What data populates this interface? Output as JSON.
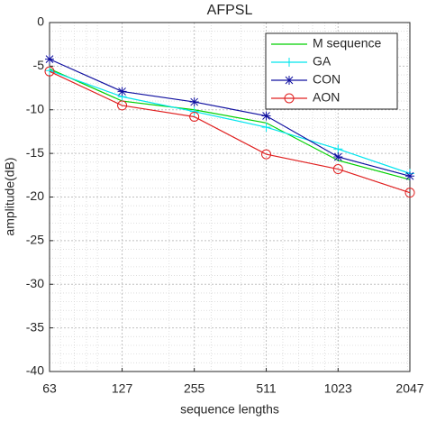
{
  "chart_data": {
    "type": "line",
    "title": "AFPSL",
    "x_label": "sequence lengths",
    "y_label": "amplitude(dB)",
    "x": [
      63,
      127,
      255,
      511,
      1023,
      2047
    ],
    "xscale": "log",
    "xlim": [
      63,
      2047
    ],
    "xticks": [
      63,
      127,
      255,
      511,
      1023,
      2047
    ],
    "ylim": [
      -40,
      0
    ],
    "yticks": [
      -40,
      -35,
      -30,
      -25,
      -20,
      -15,
      -10,
      -5,
      0
    ],
    "grid": true,
    "minor_grid": true,
    "legend": "top-right",
    "series": [
      {
        "name": "M sequence",
        "color": "#00d000",
        "marker": "none",
        "values": [
          -5.3,
          -9.0,
          -10.0,
          -11.5,
          -15.8,
          -18.0
        ]
      },
      {
        "name": "GA",
        "color": "#00e5ee",
        "marker": "plus",
        "values": [
          -5.5,
          -8.5,
          -10.2,
          -12.0,
          -14.5,
          -17.3
        ]
      },
      {
        "name": "CON",
        "color": "#1010a0",
        "marker": "star",
        "values": [
          -4.2,
          -7.9,
          -9.1,
          -10.7,
          -15.4,
          -17.6
        ]
      },
      {
        "name": "AON",
        "color": "#e02020",
        "marker": "circle",
        "values": [
          -5.6,
          -9.5,
          -10.8,
          -15.1,
          -16.8,
          -19.5
        ]
      }
    ]
  }
}
